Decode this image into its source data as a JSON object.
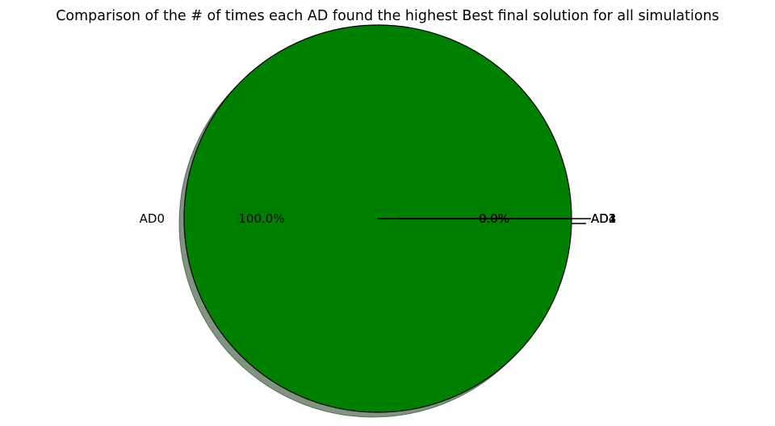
{
  "chart_data": {
    "type": "pie",
    "title": "Comparison of the # of times each AD found the highest Best final solution for all simulations",
    "labels": [
      "AD0",
      "AD1",
      "AD2",
      "AD3",
      "AD4"
    ],
    "values": [
      1,
      0,
      0,
      0,
      0
    ],
    "percent_labels": [
      "100.0%",
      "0.0%",
      "0.0%",
      "0.0%",
      "0.0%"
    ],
    "colors": [
      "#008000",
      "#008000",
      "#008000",
      "#008000",
      "#008000"
    ],
    "shadow": true,
    "edge_color": "#000000"
  }
}
